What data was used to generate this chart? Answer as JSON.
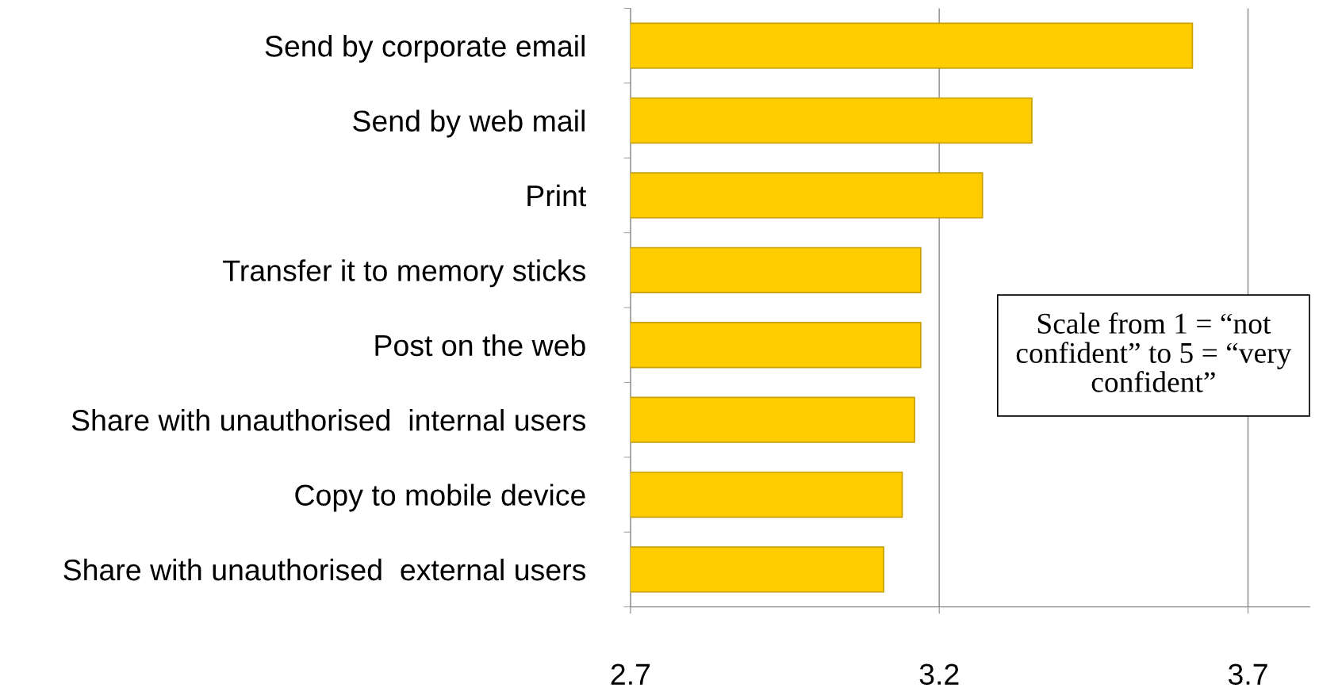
{
  "chart_data": {
    "type": "bar",
    "orientation": "horizontal",
    "categories": [
      "Send by corporate email",
      "Send by web mail",
      "Print",
      "Transfer it to memory sticks",
      "Post on the web",
      "Share with unauthorised  internal users",
      "Copy to mobile device",
      "Share with unauthorised  external users"
    ],
    "values": [
      3.61,
      3.35,
      3.27,
      3.17,
      3.17,
      3.16,
      3.14,
      3.11
    ],
    "color": "#ffcc00",
    "xlim": [
      2.7,
      3.8
    ],
    "xticks": [
      2.7,
      3.2,
      3.7
    ],
    "grid": "x",
    "annotations": [
      "Scale from 1 = “not confident” to 5 = “very confident”"
    ]
  }
}
